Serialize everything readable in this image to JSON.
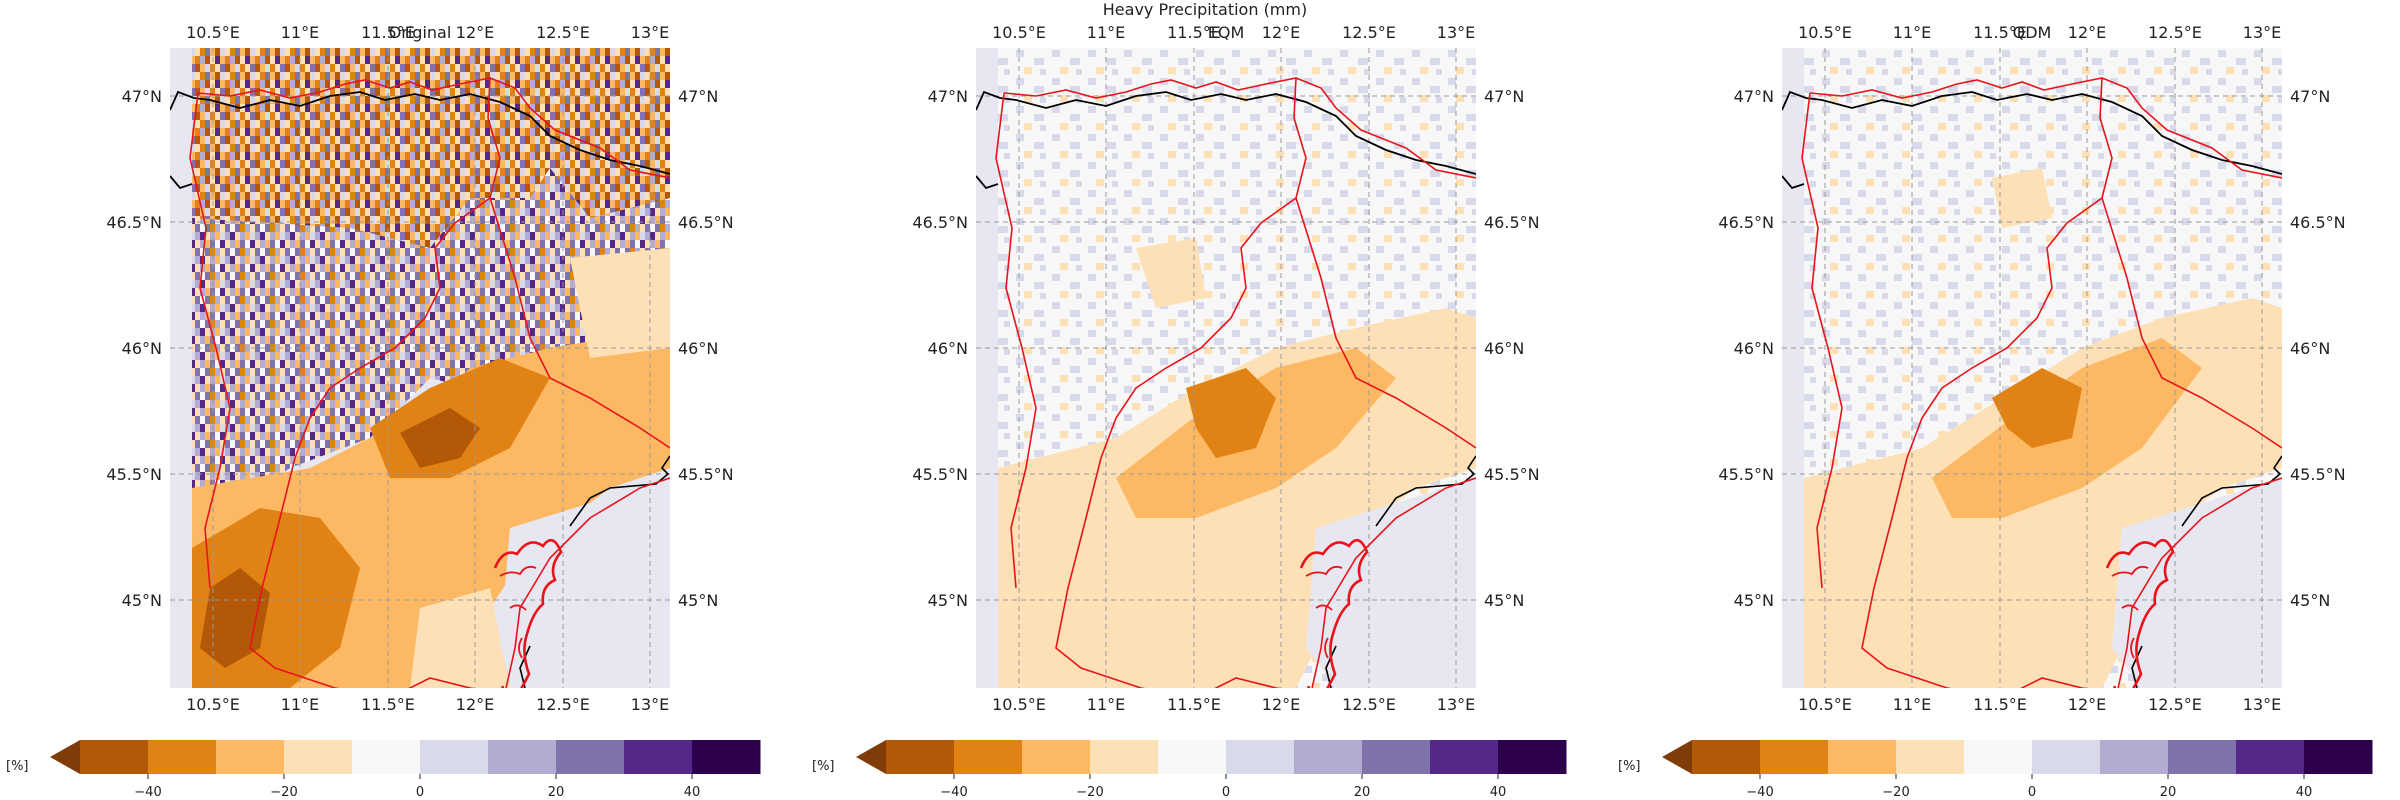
{
  "figure_title": "Heavy Precipitation (mm)",
  "panels": [
    {
      "title": "Original"
    },
    {
      "title": "EQM"
    },
    {
      "title": "QDM"
    }
  ],
  "lon_ticks": [
    "10.5°E",
    "11°E",
    "11.5°E",
    "12°E",
    "12.5°E",
    "13°E"
  ],
  "lat_ticks": [
    "47°N",
    "46.5°N",
    "46°N",
    "45.5°N",
    "45°N"
  ],
  "colorbar": {
    "unit": "[%]",
    "ticks": [
      "−40",
      "−20",
      "0",
      "20",
      "40"
    ],
    "colors": [
      "#b35806",
      "#e08214",
      "#fdb863",
      "#fee0b6",
      "#f7f7f7",
      "#d8daeb",
      "#b2abd2",
      "#8073ac",
      "#542788",
      "#2d004b"
    ],
    "extend": "min",
    "range": [
      -50,
      50
    ]
  },
  "colors": {
    "region_outline": "#e8141c",
    "coastline": "#000000",
    "sea": "#e7e7f1",
    "grid": "#999999"
  }
}
